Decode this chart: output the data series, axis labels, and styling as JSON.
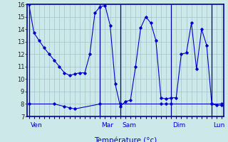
{
  "xlabel": "Température (°c)",
  "bg_color": "#cce8e8",
  "grid_color": "#a0c4cc",
  "line_color": "#0000cc",
  "ylim": [
    7,
    16
  ],
  "yticks": [
    7,
    8,
    9,
    10,
    11,
    12,
    13,
    14,
    15,
    16
  ],
  "day_labels": [
    "Ven",
    "Mar",
    "Sam",
    "Dim",
    "Lun"
  ],
  "day_positions": [
    0,
    14,
    18,
    28,
    36
  ],
  "xlim": [
    -0.3,
    38.3
  ],
  "series1_x": [
    0,
    1,
    2,
    3,
    4,
    5,
    6,
    7,
    8,
    9,
    10,
    11,
    12,
    13,
    14,
    15,
    16,
    17,
    18,
    19,
    20,
    21,
    22,
    23,
    24,
    25,
    26,
    27,
    28,
    29,
    30,
    31,
    32,
    33,
    34,
    35,
    36,
    37,
    38
  ],
  "series1_y": [
    16,
    13.7,
    13.1,
    12.5,
    12.0,
    11.5,
    11.0,
    10.5,
    10.3,
    10.4,
    10.5,
    10.5,
    12.0,
    15.3,
    15.8,
    15.9,
    14.3,
    9.6,
    7.8,
    8.2,
    8.3,
    11.0,
    14.1,
    15.0,
    14.5,
    13.1,
    8.5,
    8.4,
    8.5,
    8.5,
    12.0,
    12.1,
    14.5,
    10.8,
    14.0,
    12.7,
    8.0,
    7.9,
    7.9
  ],
  "series2_x": [
    0,
    5,
    7,
    8,
    9,
    14,
    18,
    26,
    27,
    28,
    36,
    38
  ],
  "series2_y": [
    8.0,
    8.0,
    7.8,
    7.7,
    7.6,
    8.0,
    8.0,
    8.0,
    8.0,
    8.0,
    8.0,
    8.0
  ]
}
